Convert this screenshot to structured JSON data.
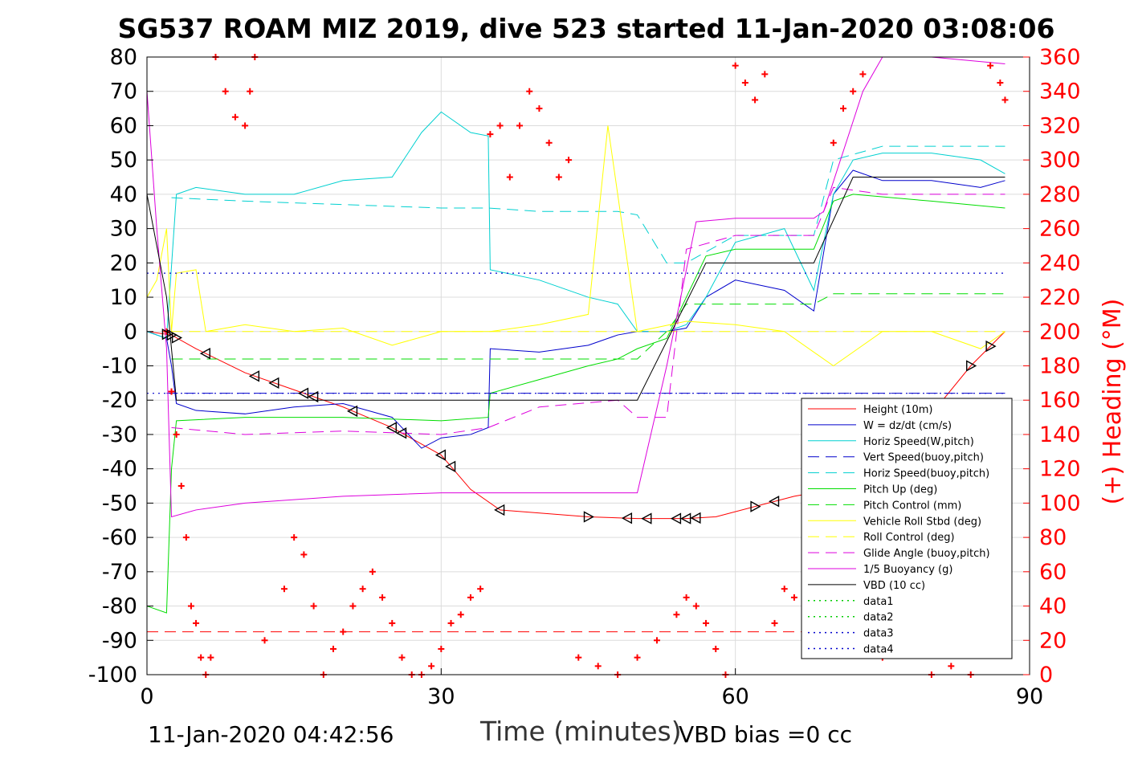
{
  "title": "SG537 ROAM MIZ 2019, dive 523 started 11-Jan-2020 03:08:06",
  "footer": {
    "timestamp": "11-Jan-2020 04:42:56",
    "xlabel": "Time (minutes)",
    "vbd_bias": "VBD bias =0 cc"
  },
  "colors": {
    "axis": "#000000",
    "right_axis": "#ff0000",
    "grid": "#dcdcdc"
  },
  "chart_data": {
    "type": "line",
    "xlim": [
      0,
      90
    ],
    "ylim": [
      -100,
      80
    ],
    "y2lim": [
      0,
      360
    ],
    "xticks": [
      "0",
      "30",
      "60",
      "90"
    ],
    "yticks": [
      "80",
      "70",
      "60",
      "50",
      "40",
      "30",
      "20",
      "10",
      "0",
      "-10",
      "-20",
      "-30",
      "-40",
      "-50",
      "-60",
      "-70",
      "-80",
      "-90",
      "-100"
    ],
    "y2ticks": [
      "360",
      "340",
      "320",
      "300",
      "280",
      "260",
      "240",
      "220",
      "200",
      "180",
      "160",
      "140",
      "120",
      "100",
      "80",
      "60",
      "40",
      "20",
      "0"
    ],
    "xlabel": "Time (minutes)",
    "ylabel_right": "(+) Heading (°M)",
    "grid": true,
    "legend_position": "lower-right",
    "series": [
      {
        "name": "Height (10m)",
        "color": "#ff0000",
        "dash": "solid",
        "x": [
          0,
          2.5,
          5,
          10,
          15,
          20,
          25,
          30,
          33,
          36,
          45,
          50,
          55,
          58,
          62,
          66,
          70,
          75,
          80,
          84,
          87.5
        ],
        "y": [
          0,
          -1,
          -5,
          -12,
          -17,
          -22,
          -28,
          -36,
          -46,
          -52,
          -54,
          -54.5,
          -54.5,
          -54,
          -51,
          -48,
          -46,
          -38,
          -24,
          -10,
          0
        ]
      },
      {
        "name": "W = dz/dt (cm/s)",
        "color": "#0000cc",
        "dash": "solid",
        "x": [
          0,
          2,
          2.5,
          3,
          5,
          10,
          15,
          20,
          25,
          28,
          30,
          33,
          34.8,
          35,
          40,
          45,
          48,
          50,
          53,
          55,
          57,
          60,
          65,
          68,
          70,
          72,
          75,
          80,
          85,
          87.5
        ],
        "y": [
          0,
          -2,
          -10,
          -21,
          -23,
          -24,
          -22,
          -21,
          -25,
          -34,
          -31,
          -30,
          -28,
          -5,
          -6,
          -4,
          -1,
          0,
          0,
          1,
          10,
          15,
          12,
          6,
          40,
          47,
          44,
          44,
          42,
          44
        ]
      },
      {
        "name": "Horiz Speed(W,pitch)",
        "color": "#00d0d0",
        "dash": "solid",
        "x": [
          0,
          2,
          3,
          5,
          10,
          15,
          20,
          25,
          28,
          30,
          33,
          34.8,
          35,
          40,
          45,
          48,
          50,
          53,
          55,
          57,
          60,
          65,
          68,
          70,
          72,
          75,
          80,
          85,
          87.5
        ],
        "y": [
          0,
          -2,
          40,
          42,
          40,
          40,
          44,
          45,
          58,
          64,
          58,
          57,
          18,
          15,
          10,
          8,
          0,
          0,
          2,
          10,
          26,
          30,
          12,
          40,
          50,
          52,
          52,
          50,
          46
        ]
      },
      {
        "name": "Vert Speed(buoy,pitch)",
        "color": "#0000cc",
        "dash": "longdash",
        "x": [
          2,
          87.5
        ],
        "y": [
          -18,
          -18
        ]
      },
      {
        "name": "Horiz Speed(buoy,pitch)",
        "color": "#00d0d0",
        "dash": "longdash",
        "x": [
          2.5,
          10,
          20,
          30,
          34.8,
          40,
          48,
          50,
          53,
          55,
          60,
          68,
          70,
          75,
          87.5
        ],
        "y": [
          39,
          38,
          37,
          36,
          36,
          35,
          35,
          34,
          20,
          20,
          28,
          28,
          50,
          54,
          54
        ]
      },
      {
        "name": "Pitch Up (deg)",
        "color": "#00dd00",
        "dash": "solid",
        "x": [
          0,
          2,
          2.5,
          3,
          10,
          20,
          30,
          34.8,
          35,
          40,
          45,
          48,
          50,
          53,
          55,
          57,
          60,
          68,
          70,
          72,
          80,
          87.5
        ],
        "y": [
          -80,
          -82,
          -40,
          -26,
          -25,
          -25,
          -26,
          -25,
          -18,
          -14,
          -10,
          -8,
          -5,
          -2,
          10,
          22,
          24,
          24,
          38,
          40,
          38,
          36
        ]
      },
      {
        "name": "Pitch Control (mm)",
        "color": "#00dd00",
        "dash": "longdash",
        "x": [
          2.5,
          33,
          34.8,
          50,
          53,
          55,
          60,
          68,
          70,
          87.5
        ],
        "y": [
          -8,
          -8,
          -8,
          -8,
          0,
          8,
          8,
          8,
          11,
          11
        ]
      },
      {
        "name": "Vehicle Roll Stbd (deg)",
        "color": "#ffff00",
        "dash": "solid",
        "x": [
          0,
          1,
          2,
          2.5,
          3,
          5,
          6,
          10,
          15,
          20,
          25,
          30,
          35,
          40,
          45,
          47,
          50,
          55,
          60,
          65,
          70,
          75,
          80,
          85,
          87.5
        ],
        "y": [
          10,
          15,
          30,
          0,
          17,
          18,
          0,
          2,
          0,
          1,
          -4,
          0,
          0,
          2,
          5,
          60,
          0,
          3,
          2,
          0,
          -10,
          0,
          0,
          -5,
          0
        ]
      },
      {
        "name": "Roll Control (deg)",
        "color": "#ffff00",
        "dash": "longdash",
        "x": [
          2.5,
          87.5
        ],
        "y": [
          0,
          0
        ]
      },
      {
        "name": "Glide Angle (buoy,pitch)",
        "color": "#dd00dd",
        "dash": "longdash",
        "x": [
          2.5,
          10,
          20,
          30,
          34.8,
          40,
          48,
          50,
          53,
          55,
          60,
          68,
          70,
          75,
          87.5
        ],
        "y": [
          -28,
          -30,
          -29,
          -30,
          -28,
          -22,
          -20,
          -25,
          -25,
          24,
          28,
          28,
          42,
          40,
          40
        ]
      },
      {
        "name": "1/5 Buoyancy (g)",
        "color": "#dd00dd",
        "dash": "solid",
        "x": [
          0,
          1,
          2,
          2.5,
          5,
          10,
          20,
          30,
          40,
          50,
          53,
          56,
          60,
          68,
          69,
          73,
          75,
          80,
          87.5
        ],
        "y": [
          70,
          30,
          -5,
          -54,
          -52,
          -50,
          -48,
          -47,
          -47,
          -47,
          -10,
          32,
          33,
          33,
          35,
          70,
          80,
          80,
          78
        ]
      },
      {
        "name": "VBD (10 cc)",
        "color": "#000000",
        "dash": "solid",
        "x": [
          0,
          2,
          3,
          50,
          57,
          68,
          72,
          87.5
        ],
        "y": [
          40,
          10,
          -20,
          -20,
          20,
          20,
          45,
          45
        ]
      },
      {
        "name": "data1",
        "color": "#00cc00",
        "dash": "dotted",
        "x": [],
        "y": []
      },
      {
        "name": "data2",
        "color": "#00cc00",
        "dash": "dotted",
        "x": [],
        "y": []
      },
      {
        "name": "data3",
        "color": "#0000cc",
        "dash": "dotted",
        "x": [
          0,
          87.5
        ],
        "y": [
          17,
          17
        ]
      },
      {
        "name": "data4",
        "color": "#0000cc",
        "dash": "dotted",
        "x": [
          0,
          87.5
        ],
        "y": [
          -18,
          -18
        ]
      }
    ],
    "extra_lines": [
      {
        "color": "#ff0000",
        "dash": "longdash",
        "x": [
          0,
          87.5
        ],
        "y": [
          -87.5,
          -87.5
        ]
      }
    ],
    "heading_series": {
      "name": "Heading",
      "marker": "+",
      "color": "#ff0000",
      "axis": "right",
      "x": [
        2,
        2.5,
        3,
        3.5,
        4,
        4.5,
        5,
        5.5,
        6,
        6.5,
        7,
        8,
        9,
        10,
        10.5,
        11,
        12,
        14,
        15,
        16,
        17,
        18,
        19,
        20,
        21,
        22,
        23,
        24,
        25,
        26,
        27,
        28,
        29,
        30,
        31,
        32,
        33,
        34,
        35,
        36,
        37,
        38,
        39,
        40,
        41,
        42,
        43,
        44,
        46,
        48,
        50,
        52,
        54,
        55,
        56,
        57,
        58,
        59,
        60,
        61,
        62,
        63,
        64,
        65,
        66,
        68,
        70,
        71,
        72,
        73,
        75,
        76,
        78,
        80,
        82,
        84,
        86,
        87,
        87.5
      ],
      "y": [
        200,
        165,
        140,
        110,
        80,
        40,
        30,
        10,
        0,
        10,
        360,
        340,
        325,
        320,
        340,
        360,
        20,
        50,
        80,
        70,
        40,
        0,
        15,
        25,
        40,
        50,
        60,
        45,
        30,
        10,
        0,
        0,
        5,
        15,
        30,
        35,
        45,
        50,
        315,
        320,
        290,
        320,
        340,
        330,
        310,
        290,
        300,
        10,
        5,
        0,
        10,
        20,
        35,
        45,
        40,
        30,
        15,
        0,
        355,
        345,
        335,
        350,
        30,
        50,
        45,
        30,
        310,
        330,
        340,
        350,
        10,
        25,
        15,
        0,
        5,
        0,
        355,
        345,
        335
      ]
    },
    "triangle_markers": {
      "x": [
        2,
        2.5,
        3,
        6,
        11,
        13,
        16,
        17,
        21,
        25,
        26,
        30,
        31,
        36,
        45,
        49,
        51,
        54,
        55,
        56,
        62,
        64,
        80,
        84,
        86
      ],
      "dir": [
        "r",
        "r",
        "r",
        "l",
        "l",
        "l",
        "l",
        "l",
        "l",
        "l",
        "l",
        "l",
        "l",
        "l",
        "r",
        "l",
        "l",
        "l",
        "l",
        "l",
        "r",
        "l",
        "l",
        "r",
        "r"
      ]
    }
  }
}
